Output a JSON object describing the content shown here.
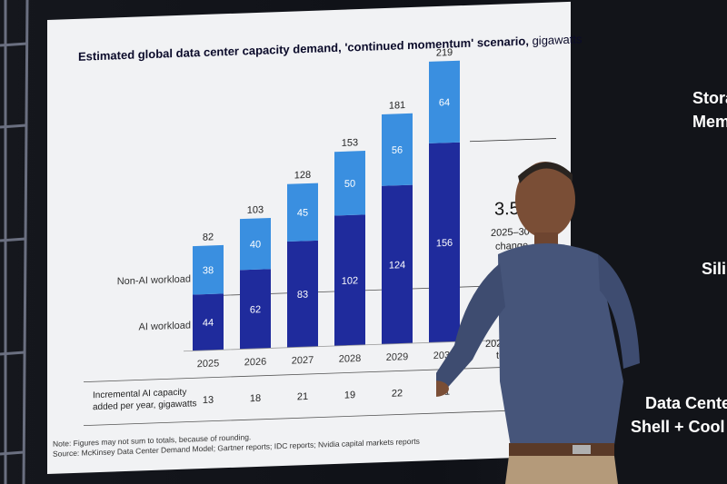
{
  "slide": {
    "title_bold": "Estimated global data center capacity demand, 'continued momentum' scenario,",
    "title_light": " gigawatts",
    "footnote_line1": "Note: Figures may not sum to totals, because of rounding.",
    "footnote_line2": "Source: McKinsey Data Center Demand Model; Gartner reports; IDC reports; Nvidia capital markets reports",
    "incremental_label_line1": "Incremental AI capacity",
    "incremental_label_line2": "added per year, gigawatts",
    "incremental_values": [
      "13",
      "18",
      "21",
      "19",
      "22",
      "31"
    ],
    "callout_value": "3.5",
    "callout_line1": "2025–30",
    "callout_line2": "change",
    "callout_bottom1": "202",
    "callout_bottom2": "to"
  },
  "side_labels": {
    "storage": "Stora",
    "memory": "Mem",
    "silicon": "Sili",
    "data_center": "Data Cente",
    "shell_cool": "Shell + Cool"
  },
  "chart_data": {
    "type": "bar",
    "stacked": true,
    "categories": [
      "2025",
      "2026",
      "2027",
      "2028",
      "2029",
      "2030"
    ],
    "series": [
      {
        "name": "AI workload",
        "values": [
          44,
          62,
          83,
          102,
          124,
          156
        ],
        "color": "#1f2b9c"
      },
      {
        "name": "Non-AI workload",
        "values": [
          38,
          40,
          45,
          50,
          56,
          64
        ],
        "color": "#3a8fe0"
      }
    ],
    "totals": [
      82,
      103,
      128,
      153,
      181,
      219
    ],
    "ylim": [
      0,
      219
    ]
  }
}
